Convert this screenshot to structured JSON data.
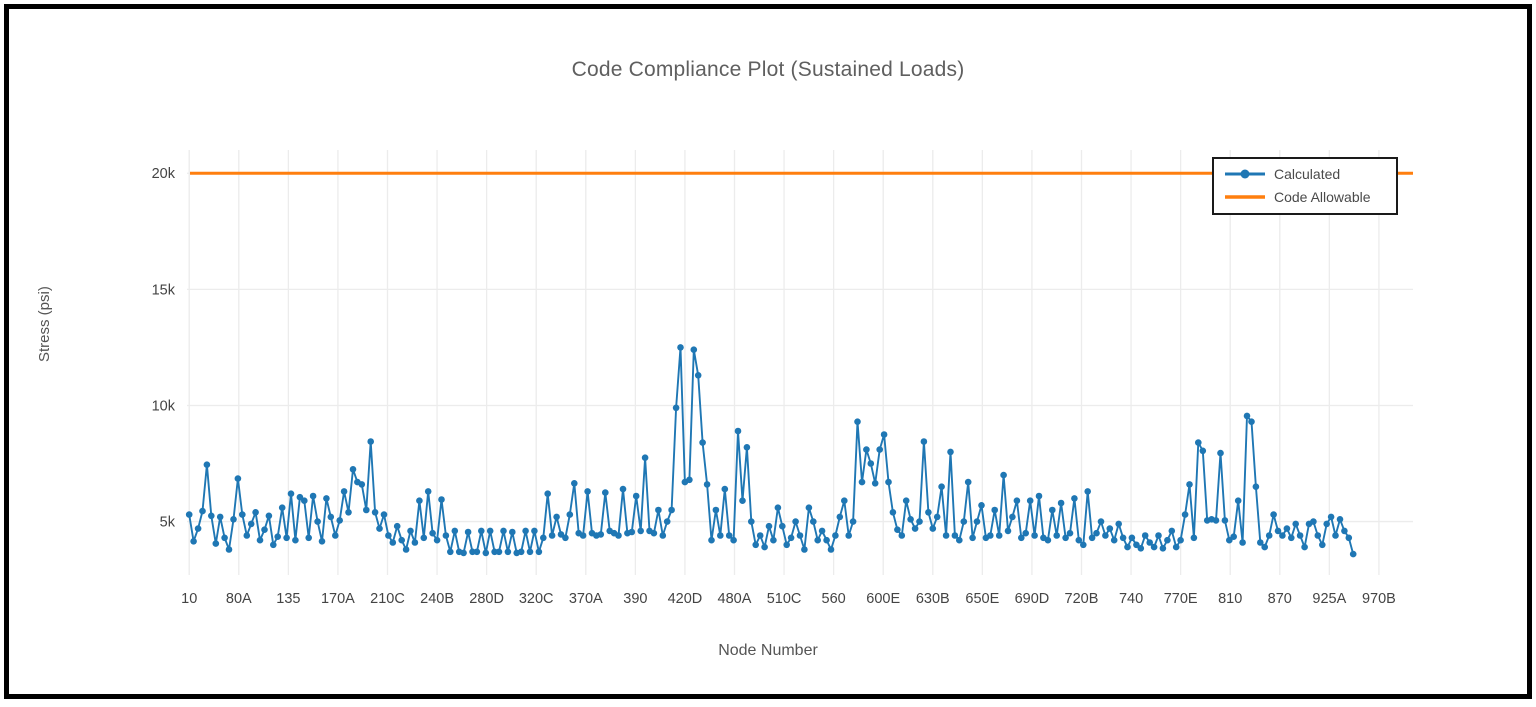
{
  "chart_data": {
    "type": "line",
    "title": "Code Compliance Plot (Sustained Loads)",
    "xlabel": "Node Number",
    "ylabel": "Stress (psi)",
    "x_tick_labels": [
      "10",
      "80A",
      "135",
      "170A",
      "210C",
      "240B",
      "280D",
      "320C",
      "370A",
      "390",
      "420D",
      "480A",
      "510C",
      "560",
      "600E",
      "630B",
      "650E",
      "690D",
      "720B",
      "740",
      "770E",
      "810",
      "870",
      "925A",
      "970B"
    ],
    "y_ticks": [
      {
        "label": "5k",
        "value": 5000
      },
      {
        "label": "10k",
        "value": 10000
      },
      {
        "label": "15k",
        "value": 15000
      },
      {
        "label": "20k",
        "value": 20000
      }
    ],
    "ylim": [
      2700,
      21000
    ],
    "grid": true,
    "legend_position": "top-right",
    "x_axis": {
      "tick_step_in_points": 11.2,
      "domain": [
        -0.5,
        276.5
      ]
    },
    "series": [
      {
        "name": "Calculated",
        "mode": "lines+markers",
        "color": "#1f77b4",
        "values": [
          5300,
          4150,
          4700,
          5450,
          7450,
          5250,
          4050,
          5200,
          4300,
          3800,
          5100,
          6850,
          5300,
          4400,
          4900,
          5400,
          4200,
          4650,
          5250,
          4000,
          4350,
          5600,
          4300,
          6200,
          4200,
          6050,
          5900,
          4300,
          6100,
          5000,
          4150,
          6000,
          5200,
          4400,
          5050,
          6300,
          5400,
          7250,
          6700,
          6600,
          5500,
          8450,
          5400,
          4700,
          5300,
          4400,
          4100,
          4800,
          4200,
          3800,
          4600,
          4100,
          5900,
          4300,
          6300,
          4500,
          4200,
          5950,
          4400,
          3700,
          4600,
          3700,
          3650,
          4550,
          3700,
          3700,
          4600,
          3650,
          4600,
          3700,
          3700,
          4600,
          3700,
          4550,
          3650,
          3700,
          4600,
          3700,
          4600,
          3700,
          4300,
          6200,
          4400,
          5200,
          4450,
          4300,
          5300,
          6650,
          4500,
          4400,
          6300,
          4500,
          4400,
          4450,
          6250,
          4600,
          4500,
          4400,
          6400,
          4500,
          4550,
          6100,
          4600,
          7750,
          4600,
          4500,
          5500,
          4400,
          5000,
          5500,
          9900,
          12500,
          6700,
          6800,
          12400,
          11300,
          8400,
          6600,
          4200,
          5500,
          4400,
          6400,
          4400,
          4200,
          8900,
          5900,
          8200,
          5000,
          4000,
          4400,
          3900,
          4800,
          4200,
          5600,
          4800,
          4000,
          4300,
          5000,
          4400,
          3800,
          5600,
          5000,
          4200,
          4600,
          4200,
          3800,
          4400,
          5200,
          5900,
          4400,
          5000,
          9300,
          6700,
          8100,
          7500,
          6650,
          8100,
          8750,
          6700,
          5400,
          4650,
          4400,
          5900,
          5100,
          4700,
          5000,
          8450,
          5400,
          4700,
          5200,
          6500,
          4400,
          8000,
          4400,
          4200,
          5000,
          6700,
          4300,
          5000,
          5700,
          4300,
          4400,
          5500,
          4400,
          7000,
          4600,
          5200,
          5900,
          4300,
          4500,
          5900,
          4400,
          6100,
          4300,
          4200,
          5500,
          4400,
          5800,
          4300,
          4500,
          6000,
          4200,
          4000,
          6300,
          4300,
          4500,
          5000,
          4400,
          4700,
          4200,
          4900,
          4300,
          3900,
          4300,
          4000,
          3850,
          4400,
          4100,
          3900,
          4400,
          3850,
          4200,
          4600,
          3900,
          4200,
          5300,
          6600,
          4300,
          8400,
          8050,
          5050,
          5100,
          5050,
          7950,
          5050,
          4200,
          4350,
          5900,
          4100,
          9550,
          9300,
          6500,
          4100,
          3900,
          4400,
          5300,
          4600,
          4400,
          4700,
          4300,
          4900,
          4400,
          3900,
          4900,
          5000,
          4400,
          4000,
          4900,
          5200,
          4400,
          5100,
          4600,
          4300,
          3600
        ]
      },
      {
        "name": "Code Allowable",
        "mode": "hline",
        "color": "#ff7f0e",
        "value": 20000
      }
    ]
  },
  "legend": {
    "items": [
      {
        "label": "Calculated",
        "color": "#1f77b4",
        "marker": true
      },
      {
        "label": "Code Allowable",
        "color": "#ff7f0e",
        "marker": false
      }
    ]
  },
  "colors": {
    "accent_blue": "#1f77b4",
    "accent_orange": "#ff7f0e",
    "grid": "#ececec",
    "tick_text": "#444444",
    "title_text": "#5f5f5f",
    "frame_border": "#000000"
  }
}
